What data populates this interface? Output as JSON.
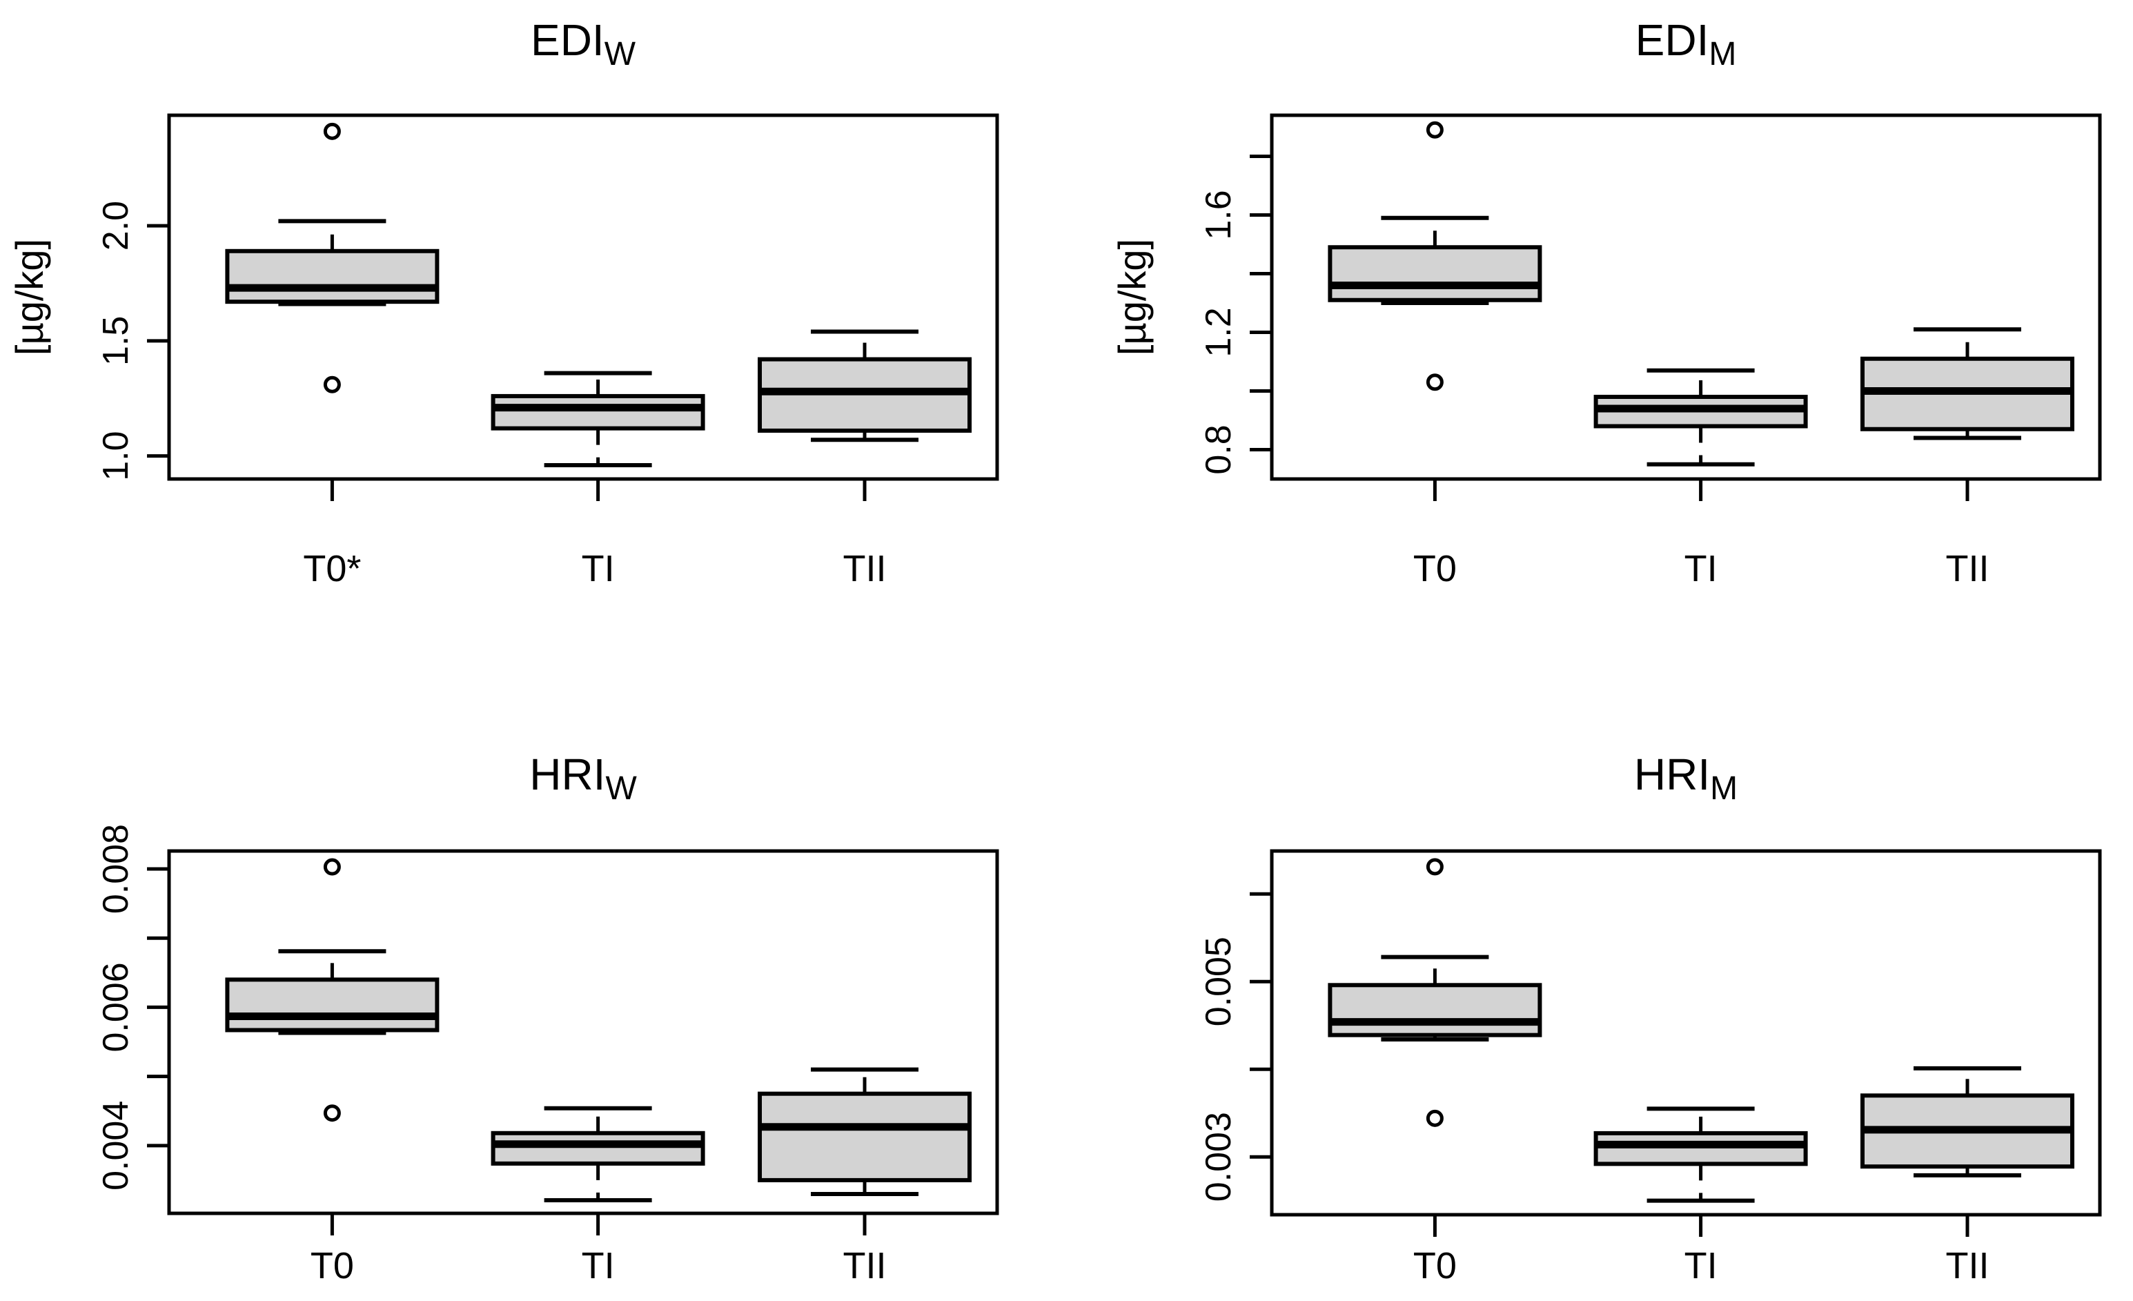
{
  "figure": {
    "background": "#ffffff",
    "box_fill": "#d3d3d3",
    "line_color": "#000000",
    "text_color": "#000000"
  },
  "chart_data": [
    {
      "type": "boxplot",
      "title": "EDI",
      "title_sub": "W",
      "ylabel": "[µg/kg]",
      "categories": [
        "T0*",
        "TI",
        "TII"
      ],
      "ylim": [
        0.9,
        2.48
      ],
      "grid": false,
      "yticks": [
        {
          "v": 1.0,
          "label": "1.0"
        },
        {
          "v": 1.5,
          "label": "1.5"
        },
        {
          "v": 2.0,
          "label": "2.0"
        }
      ],
      "series": [
        {
          "category": "T0*",
          "whisker_low": 1.66,
          "q1": 1.67,
          "median": 1.73,
          "q3": 1.89,
          "whisker_high": 2.02,
          "outliers": [
            2.41,
            1.31
          ]
        },
        {
          "category": "TI",
          "whisker_low": 0.96,
          "q1": 1.12,
          "median": 1.21,
          "q3": 1.26,
          "whisker_high": 1.36,
          "outliers": []
        },
        {
          "category": "TII",
          "whisker_low": 1.07,
          "q1": 1.11,
          "median": 1.28,
          "q3": 1.42,
          "whisker_high": 1.54,
          "outliers": []
        }
      ]
    },
    {
      "type": "boxplot",
      "title": "EDI",
      "title_sub": "M",
      "ylabel": "[µg/kg]",
      "categories": [
        "T0",
        "TI",
        "TII"
      ],
      "ylim": [
        0.7,
        1.94
      ],
      "grid": false,
      "yticks": [
        {
          "v": 0.8,
          "label": "0.8"
        },
        {
          "v": 1.0,
          "label": null
        },
        {
          "v": 1.2,
          "label": "1.2"
        },
        {
          "v": 1.4,
          "label": null
        },
        {
          "v": 1.6,
          "label": "1.6"
        },
        {
          "v": 1.8,
          "label": null
        }
      ],
      "series": [
        {
          "category": "T0",
          "whisker_low": 1.3,
          "q1": 1.31,
          "median": 1.36,
          "q3": 1.49,
          "whisker_high": 1.59,
          "outliers": [
            1.89,
            1.03
          ]
        },
        {
          "category": "TI",
          "whisker_low": 0.75,
          "q1": 0.88,
          "median": 0.94,
          "q3": 0.98,
          "whisker_high": 1.07,
          "outliers": []
        },
        {
          "category": "TII",
          "whisker_low": 0.84,
          "q1": 0.87,
          "median": 1.0,
          "q3": 1.11,
          "whisker_high": 1.21,
          "outliers": []
        }
      ]
    },
    {
      "type": "boxplot",
      "title": "HRI",
      "title_sub": "W",
      "ylabel": null,
      "categories": [
        "T0",
        "TI",
        "TII"
      ],
      "ylim": [
        0.00302,
        0.00826
      ],
      "grid": false,
      "yticks": [
        {
          "v": 0.004,
          "label": "0.004"
        },
        {
          "v": 0.005,
          "label": null
        },
        {
          "v": 0.006,
          "label": "0.006"
        },
        {
          "v": 0.007,
          "label": null
        },
        {
          "v": 0.008,
          "label": "0.008"
        }
      ],
      "series": [
        {
          "category": "T0",
          "whisker_low": 0.00563,
          "q1": 0.00567,
          "median": 0.00587,
          "q3": 0.0064,
          "whisker_high": 0.00681,
          "outliers": [
            0.00803,
            0.00447
          ]
        },
        {
          "category": "TI",
          "whisker_low": 0.00321,
          "q1": 0.00374,
          "median": 0.00402,
          "q3": 0.00418,
          "whisker_high": 0.00454,
          "outliers": []
        },
        {
          "category": "TII",
          "whisker_low": 0.0033,
          "q1": 0.0035,
          "median": 0.00427,
          "q3": 0.00475,
          "whisker_high": 0.0051,
          "outliers": []
        }
      ]
    },
    {
      "type": "boxplot",
      "title": "HRI",
      "title_sub": "M",
      "ylabel": null,
      "categories": [
        "T0",
        "TI",
        "TII"
      ],
      "ylim": [
        0.00234,
        0.00649
      ],
      "grid": false,
      "yticks": [
        {
          "v": 0.003,
          "label": "0.003"
        },
        {
          "v": 0.004,
          "label": null
        },
        {
          "v": 0.005,
          "label": "0.005"
        },
        {
          "v": 0.006,
          "label": null
        }
      ],
      "series": [
        {
          "category": "T0",
          "whisker_low": 0.00434,
          "q1": 0.00439,
          "median": 0.00454,
          "q3": 0.00496,
          "whisker_high": 0.00528,
          "outliers": [
            0.00631,
            0.00344
          ]
        },
        {
          "category": "TI",
          "whisker_low": 0.0025,
          "q1": 0.00292,
          "median": 0.00314,
          "q3": 0.00327,
          "whisker_high": 0.00355,
          "outliers": []
        },
        {
          "category": "TII",
          "whisker_low": 0.00279,
          "q1": 0.00289,
          "median": 0.00331,
          "q3": 0.0037,
          "whisker_high": 0.00401,
          "outliers": []
        }
      ]
    }
  ]
}
